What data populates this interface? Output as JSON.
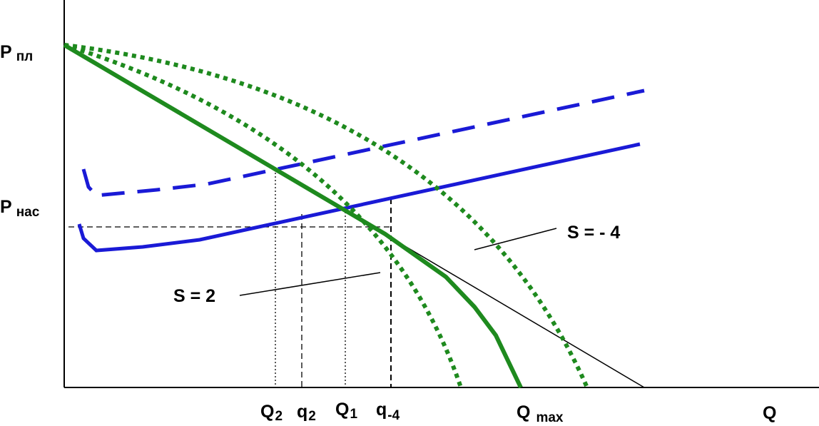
{
  "axes": {
    "y_label_main": "P",
    "x_label": "Q"
  },
  "y_ticks": [
    {
      "main": "P",
      "sub": "пл"
    },
    {
      "main": "P",
      "sub": "нас"
    }
  ],
  "x_ticks": [
    {
      "main": "Q",
      "sub": "2"
    },
    {
      "main": "q",
      "sub": "2"
    },
    {
      "main": "Q",
      "sub": "1"
    },
    {
      "main": "q",
      "sub": "-4"
    },
    {
      "main": "Q",
      "sub": "max"
    }
  ],
  "annotations": {
    "s_positive": "S = 2",
    "s_negative": "S = - 4"
  },
  "colors": {
    "demand": "#1e8a1e",
    "supply": "#1a1ad6",
    "axis": "#000000"
  }
}
